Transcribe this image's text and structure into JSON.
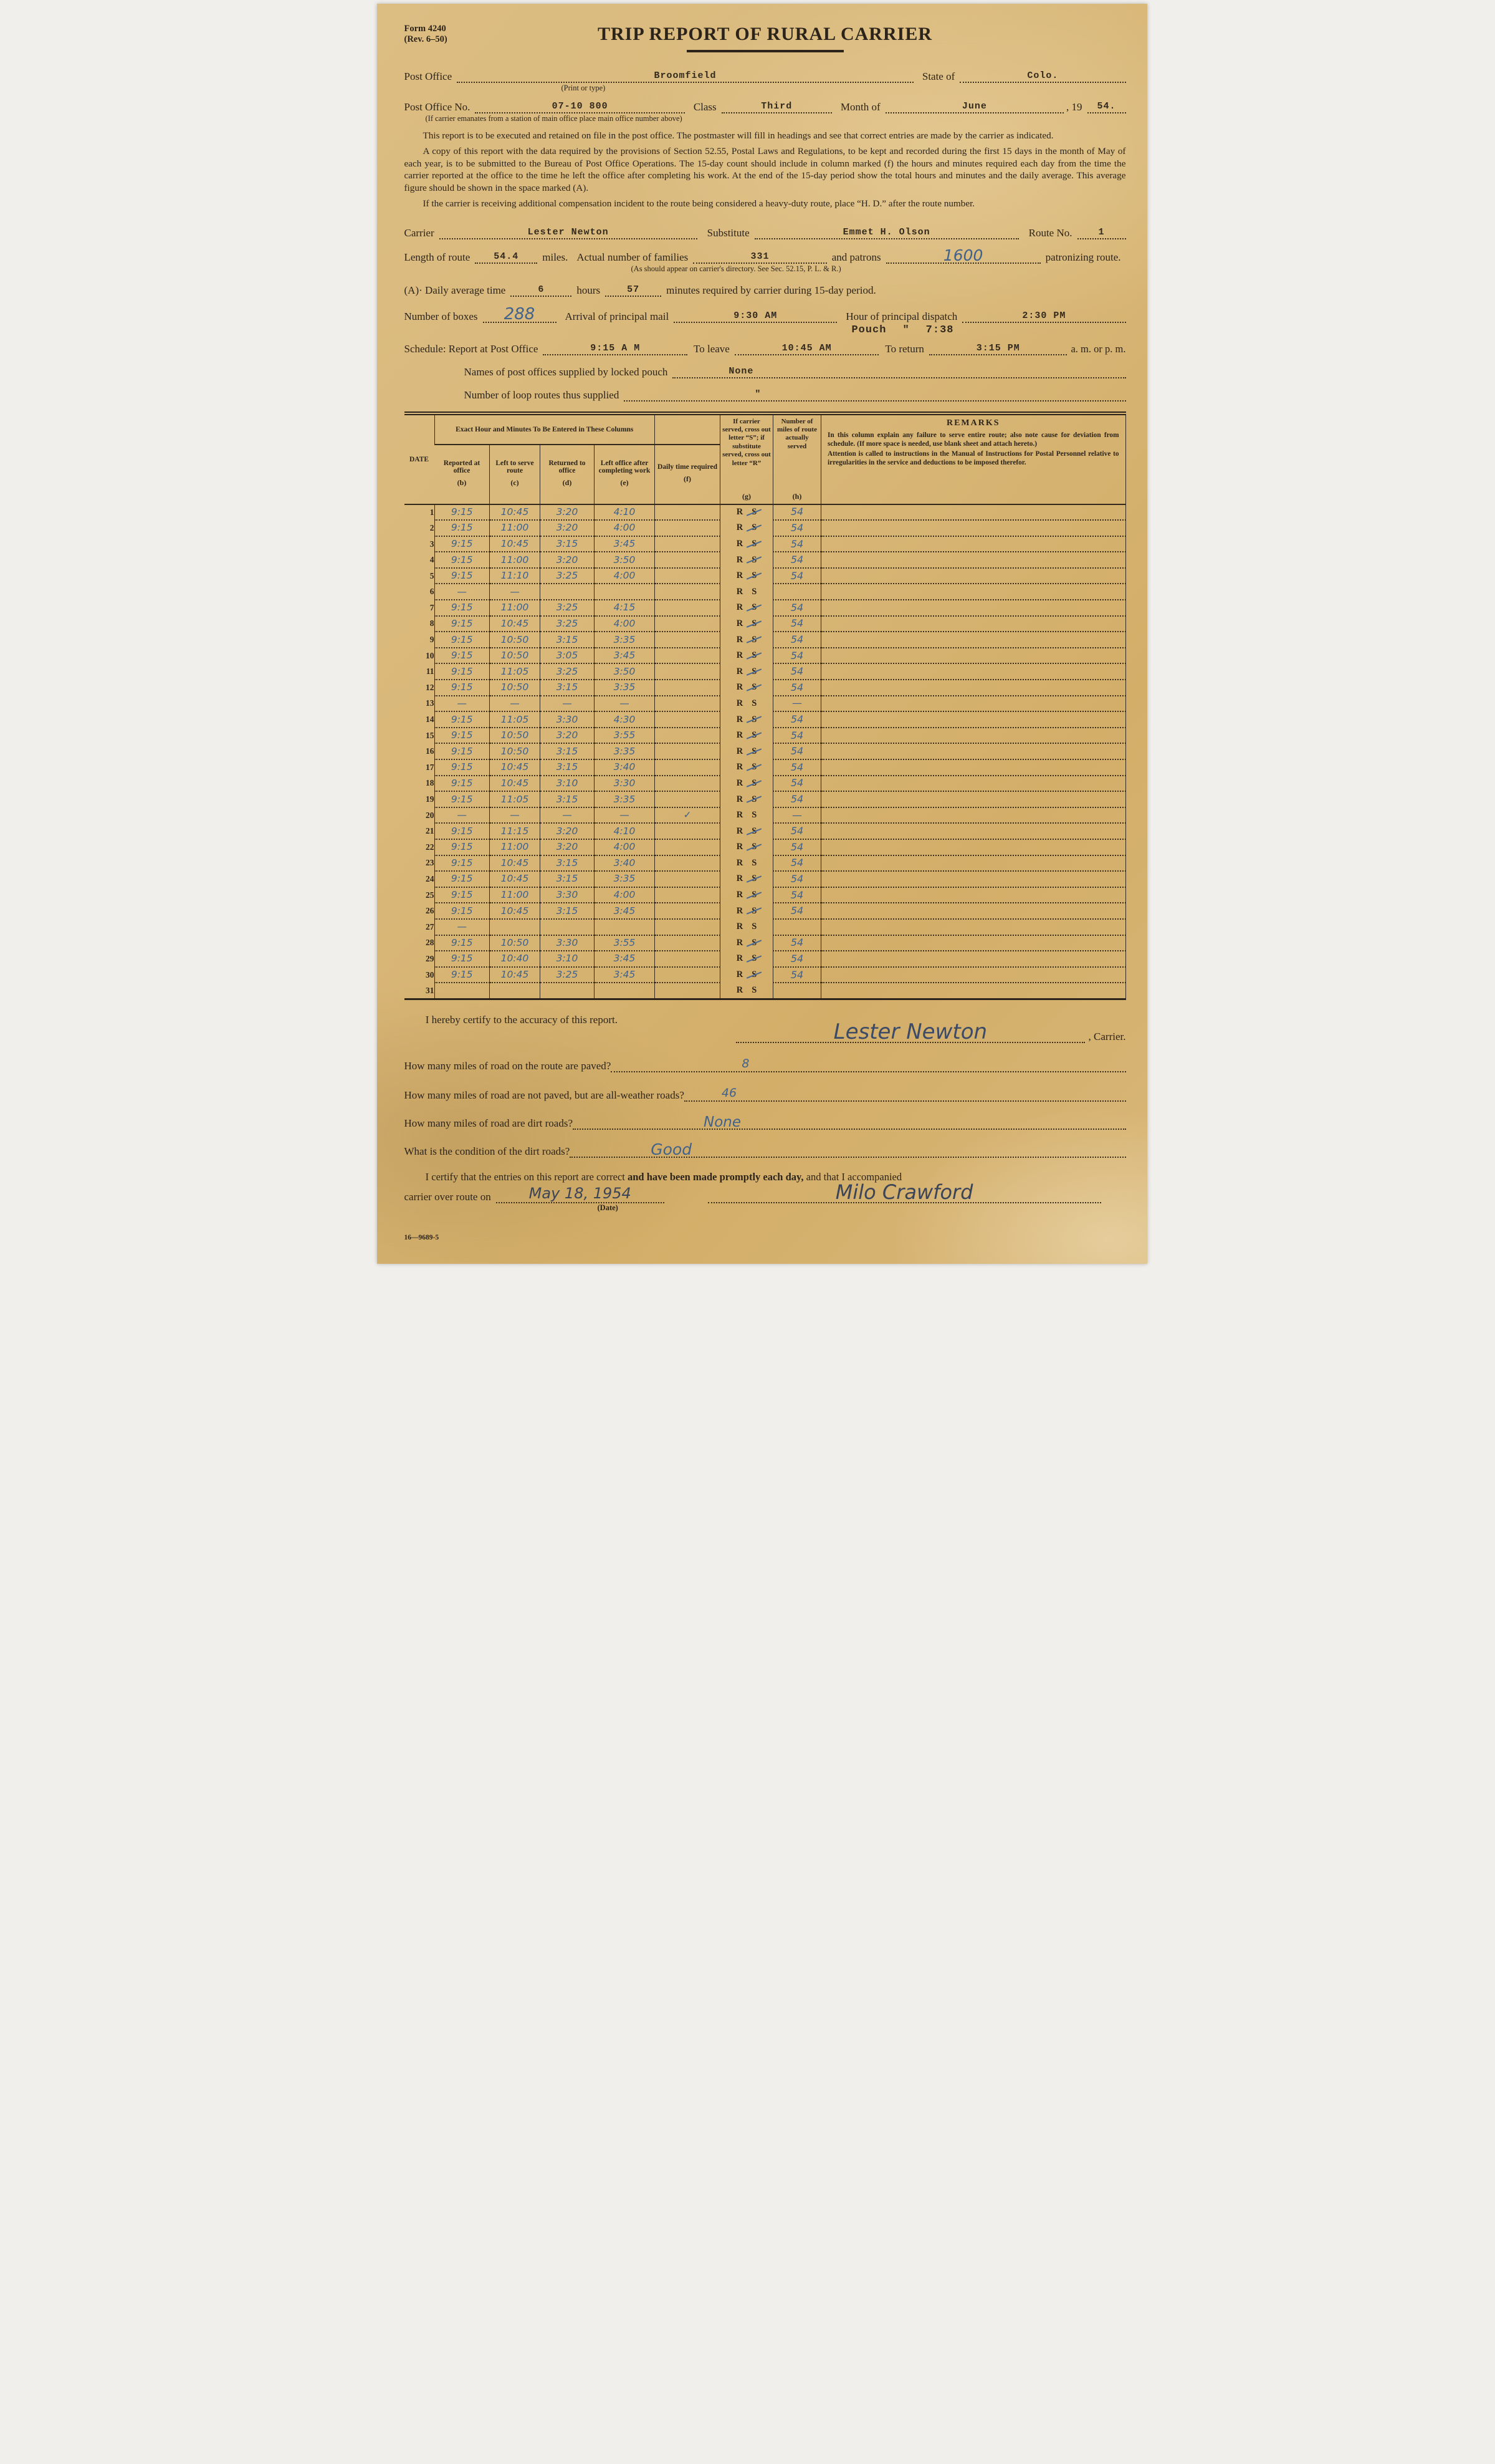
{
  "form": {
    "form_no": "Form 4240",
    "revision": "(Rev. 6–50)",
    "title": "TRIP REPORT OF RURAL CARRIER",
    "footer_code": "16—9689-5"
  },
  "header_fields": {
    "post_office_label": "Post Office",
    "post_office_value": "Broomfield",
    "print_or_type": "(Print or type)",
    "state_label": "State of",
    "state_value": "Colo.",
    "po_no_label": "Post Office No.",
    "po_no_value": "07-10 800",
    "class_label": "Class",
    "class_value": "Third",
    "month_label": "Month of",
    "month_value": "June",
    "year_prefix": ", 19",
    "year_value": "54.",
    "station_note": "(If carrier emanates from a station of main office place main office number above)"
  },
  "instructions": {
    "p1": "This report is to be executed and retained on file in the post office.  The postmaster will fill in headings and see that correct entries are made by the carrier as indicated.",
    "p2": "A copy of this report with the data required by the provisions of Section 52.55, Postal Laws and Regulations, to be kept and recorded during the first 15 days in the month of May of each year, is to be submitted to the Bureau of Post Office Operations.  The 15-day count should include in column marked (f) the hours and minutes required each day from the time the carrier reported at the office to the time he left the office after completing his work.  At the end of the 15-day period show the total hours and minutes and the daily average.  This average figure should be shown in the space marked (A).",
    "p3": "If the carrier is receiving additional compensation incident to the route being considered a heavy-duty route, place “H. D.” after the route number."
  },
  "carrier_section": {
    "carrier_label": "Carrier",
    "carrier_value": "Lester Newton",
    "substitute_label": "Substitute",
    "substitute_value": "Emmet H. Olson",
    "route_no_label": "Route No.",
    "route_no_value": "1",
    "length_label": "Length of route",
    "length_value": "54.4",
    "miles_label": "miles.",
    "families_label": "Actual number of families",
    "families_value": "331",
    "patrons_label": "and patrons",
    "patrons_value": "1600",
    "patronizing_label": "patronizing route.",
    "directory_note": "(As should appear on carrier's directory.   See Sec. 52.15, P. L. & R.)",
    "avg_label_a": "(A)· Daily average time",
    "avg_hours_value": "6",
    "avg_hours_label": "hours",
    "avg_minutes_value": "57",
    "avg_minutes_label": "minutes required by carrier during 15-day period."
  },
  "schedule_section": {
    "boxes_label": "Number of boxes",
    "boxes_value": "288",
    "arrival_label": "Arrival of principal mail",
    "arrival_value": "9:30 AM",
    "dispatch_label": "Hour of principal dispatch",
    "dispatch_value": "2:30 PM",
    "pouch_label": "Pouch",
    "pouch_ditto": "\"",
    "pouch_value": "7:38",
    "schedule_label": "Schedule:  Report at Post Office",
    "report_value": "9:15 A M",
    "leave_label": "To leave",
    "leave_value": "10:45 AM",
    "return_label": "To return",
    "return_value": "3:15 PM",
    "ampm_label": "a. m. or p. m.",
    "locked_pouch_label": "Names of post offices supplied by locked pouch",
    "locked_pouch_value": "None",
    "loop_label": "Number of loop routes thus supplied",
    "loop_value": "\""
  },
  "table": {
    "header": {
      "date": "DATE",
      "group": "Exact Hour and Minutes To Be Entered in These Columns",
      "b_label": "Reported at office",
      "b_letter": "(b)",
      "c_label": "Left to serve route",
      "c_letter": "(c)",
      "d_label": "Returned to office",
      "d_letter": "(d)",
      "e_label": "Left office after completing work",
      "e_letter": "(e)",
      "f_label": "Daily time required",
      "f_letter": "(f)",
      "g_label": "If carrier served, cross out letter “S”; if substitute served, cross out letter “R”",
      "g_letter": "(g)",
      "h_label": "Number of miles of route actually served",
      "h_letter": "(h)",
      "remarks_title": "REMARKS",
      "remarks_p1": "In this column explain any failure to serve entire route; also note cause for deviation from schedule. (If more space is needed, use blank sheet and attach hereto.)",
      "remarks_p2": "Attention is called to instructions in the Manual of Instructions for Postal Personnel relative to irregularities in the service and deductions to be imposed therefor.",
      "r_letter": "R",
      "s_letter": "S"
    },
    "rows": [
      {
        "day": "1",
        "b": "9:15",
        "c": "10:45",
        "d": "3:20",
        "e": "4:10",
        "f": "",
        "h": "54",
        "sx": true
      },
      {
        "day": "2",
        "b": "9:15",
        "c": "11:00",
        "d": "3:20",
        "e": "4:00",
        "f": "",
        "h": "54",
        "sx": true
      },
      {
        "day": "3",
        "b": "9:15",
        "c": "10:45",
        "d": "3:15",
        "e": "3:45",
        "f": "",
        "h": "54",
        "sx": true
      },
      {
        "day": "4",
        "b": "9:15",
        "c": "11:00",
        "d": "3:20",
        "e": "3:50",
        "f": "",
        "h": "54",
        "sx": true
      },
      {
        "day": "5",
        "b": "9:15",
        "c": "11:10",
        "d": "3:25",
        "e": "4:00",
        "f": "",
        "h": "54",
        "sx": true
      },
      {
        "day": "6",
        "b": "—",
        "c": "—",
        "d": "",
        "e": "",
        "f": "",
        "h": "",
        "sx": false
      },
      {
        "day": "7",
        "b": "9:15",
        "c": "11:00",
        "d": "3:25",
        "e": "4:15",
        "f": "",
        "h": "54",
        "sx": true
      },
      {
        "day": "8",
        "b": "9:15",
        "c": "10:45",
        "d": "3:25",
        "e": "4:00",
        "f": "",
        "h": "54",
        "sx": true
      },
      {
        "day": "9",
        "b": "9:15",
        "c": "10:50",
        "d": "3:15",
        "e": "3:35",
        "f": "",
        "h": "54",
        "sx": true
      },
      {
        "day": "10",
        "b": "9:15",
        "c": "10:50",
        "d": "3:05",
        "e": "3:45",
        "f": "",
        "h": "54",
        "sx": true
      },
      {
        "day": "11",
        "b": "9:15",
        "c": "11:05",
        "d": "3:25",
        "e": "3:50",
        "f": "",
        "h": "54",
        "sx": true
      },
      {
        "day": "12",
        "b": "9:15",
        "c": "10:50",
        "d": "3:15",
        "e": "3:35",
        "f": "",
        "h": "54",
        "sx": true
      },
      {
        "day": "13",
        "b": "—",
        "c": "—",
        "d": "—",
        "e": "—",
        "f": "",
        "h": "—",
        "sx": false
      },
      {
        "day": "14",
        "b": "9:15",
        "c": "11:05",
        "d": "3:30",
        "e": "4:30",
        "f": "",
        "h": "54",
        "sx": true
      },
      {
        "day": "15",
        "b": "9:15",
        "c": "10:50",
        "d": "3:20",
        "e": "3:55",
        "f": "",
        "h": "54",
        "sx": true
      },
      {
        "day": "16",
        "b": "9:15",
        "c": "10:50",
        "d": "3:15",
        "e": "3:35",
        "f": "",
        "h": "54",
        "sx": true
      },
      {
        "day": "17",
        "b": "9:15",
        "c": "10:45",
        "d": "3:15",
        "e": "3:40",
        "f": "",
        "h": "54",
        "sx": true
      },
      {
        "day": "18",
        "b": "9:15",
        "c": "10:45",
        "d": "3:10",
        "e": "3:30",
        "f": "",
        "h": "54",
        "sx": true
      },
      {
        "day": "19",
        "b": "9:15",
        "c": "11:05",
        "d": "3:15",
        "e": "3:35",
        "f": "",
        "h": "54",
        "sx": true
      },
      {
        "day": "20",
        "b": "—",
        "c": "—",
        "d": "—",
        "e": "—",
        "f": "✓",
        "h": "—",
        "sx": false
      },
      {
        "day": "21",
        "b": "9:15",
        "c": "11:15",
        "d": "3:20",
        "e": "4:10",
        "f": "",
        "h": "54",
        "sx": true
      },
      {
        "day": "22",
        "b": "9:15",
        "c": "11:00",
        "d": "3:20",
        "e": "4:00",
        "f": "",
        "h": "54",
        "sx": true
      },
      {
        "day": "23",
        "b": "9:15",
        "c": "10:45",
        "d": "3:15",
        "e": "3:40",
        "f": "",
        "h": "54",
        "sx": false
      },
      {
        "day": "24",
        "b": "9:15",
        "c": "10:45",
        "d": "3:15",
        "e": "3:35",
        "f": "",
        "h": "54",
        "sx": true
      },
      {
        "day": "25",
        "b": "9:15",
        "c": "11:00",
        "d": "3:30",
        "e": "4:00",
        "f": "",
        "h": "54",
        "sx": true
      },
      {
        "day": "26",
        "b": "9:15",
        "c": "10:45",
        "d": "3:15",
        "e": "3:45",
        "f": "",
        "h": "54",
        "sx": true
      },
      {
        "day": "27",
        "b": "—",
        "c": "",
        "d": "",
        "e": "",
        "f": "",
        "h": "",
        "sx": false
      },
      {
        "day": "28",
        "b": "9:15",
        "c": "10:50",
        "d": "3:30",
        "e": "3:55",
        "f": "",
        "h": "54",
        "sx": true
      },
      {
        "day": "29",
        "b": "9:15",
        "c": "10:40",
        "d": "3:10",
        "e": "3:45",
        "f": "",
        "h": "54",
        "sx": true
      },
      {
        "day": "30",
        "b": "9:15",
        "c": "10:45",
        "d": "3:25",
        "e": "3:45",
        "f": "",
        "h": "54",
        "sx": true
      },
      {
        "day": "31",
        "b": "",
        "c": "",
        "d": "",
        "e": "",
        "f": "",
        "h": "",
        "sx": false
      }
    ]
  },
  "footer": {
    "certify1": "I hereby certify to the accuracy of this report.",
    "carrier_signature": "Lester Newton",
    "carrier_suffix": ", Carrier.",
    "q_paved_label": "How many miles of road on the route are paved?",
    "q_paved_value": "8",
    "q_allweather_label": "How many miles of road are not paved, but are all-weather roads?",
    "q_allweather_value": "46",
    "q_dirt_label": "How many miles of road are dirt roads?",
    "q_dirt_value": "None",
    "q_condition_label": "What is the condition of the dirt roads?",
    "q_condition_value": "Good",
    "certify2_a": "I certify that the entries on this report are correct ",
    "certify2_b": "and have been made promptly each day,",
    "certify2_c": " and that I accompanied",
    "certify2_d": "carrier over route on",
    "accompany_date": "May 18, 1954",
    "date_caption": "(Date)",
    "witness_signature": "Milo Crawford"
  }
}
